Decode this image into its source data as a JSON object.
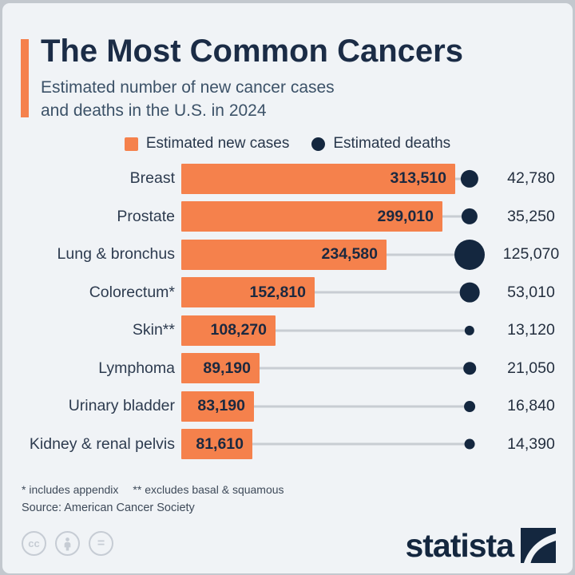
{
  "page": {
    "background": "#f0f3f6",
    "frame_color": "#c3c8ce"
  },
  "header": {
    "title": "The Most Common Cancers",
    "subtitle_line1": "Estimated number of new cancer cases",
    "subtitle_line2": "and deaths in the U.S. in 2024",
    "accent_color": "#F5814C"
  },
  "legend": {
    "new_cases_label": "Estimated new cases",
    "deaths_label": "Estimated deaths"
  },
  "chart_data": {
    "type": "bar",
    "orientation": "horizontal",
    "title": "The Most Common Cancers",
    "subtitle": "Estimated number of new cancer cases and deaths in the U.S. in 2024",
    "categories": [
      "Breast",
      "Prostate",
      "Lung & bronchus",
      "Colorectum*",
      "Skin**",
      "Lymphoma",
      "Urinary bladder",
      "Kidney & renal pelvis"
    ],
    "series": [
      {
        "name": "Estimated new cases",
        "values": [
          313510,
          299010,
          234580,
          152810,
          108270,
          89190,
          83190,
          81610
        ]
      },
      {
        "name": "Estimated deaths",
        "values": [
          42780,
          35250,
          125070,
          53010,
          13120,
          21050,
          16840,
          14390
        ]
      }
    ],
    "rows": [
      {
        "category": "Breast",
        "new_cases": 313510,
        "new_cases_label": "313,510",
        "deaths": 42780,
        "deaths_label": "42,780"
      },
      {
        "category": "Prostate",
        "new_cases": 299010,
        "new_cases_label": "299,010",
        "deaths": 35250,
        "deaths_label": "35,250"
      },
      {
        "category": "Lung & bronchus",
        "new_cases": 234580,
        "new_cases_label": "234,580",
        "deaths": 125070,
        "deaths_label": "125,070"
      },
      {
        "category": "Colorectum*",
        "new_cases": 152810,
        "new_cases_label": "152,810",
        "deaths": 53010,
        "deaths_label": "53,010"
      },
      {
        "category": "Skin**",
        "new_cases": 108270,
        "new_cases_label": "108,270",
        "deaths": 13120,
        "deaths_label": "13,120"
      },
      {
        "category": "Lymphoma",
        "new_cases": 89190,
        "new_cases_label": "89,190",
        "deaths": 21050,
        "deaths_label": "21,050"
      },
      {
        "category": "Urinary bladder",
        "new_cases": 83190,
        "new_cases_label": "83,190",
        "deaths": 16840,
        "deaths_label": "16,840"
      },
      {
        "category": "Kidney & renal pelvis",
        "new_cases": 81610,
        "new_cases_label": "81,610",
        "deaths": 14390,
        "deaths_label": "14,390"
      }
    ],
    "colors": {
      "new_cases": "#F5814C",
      "deaths": "#14273F",
      "connector": "#c8cdd3"
    },
    "xlim": [
      0,
      313510
    ],
    "grid": false,
    "legend_position": "top",
    "notes": "death circles area-scaled to value; max circle 38px at 125070"
  },
  "footnotes": {
    "note1": "* includes appendix",
    "note2": "** excludes basal & squamous",
    "source": "Source: American Cancer Society"
  },
  "branding": {
    "logo_text": "statista",
    "license_icons": [
      "cc-icon",
      "attribution-person-icon",
      "equals-icon"
    ],
    "cc_glyph": "cc",
    "equals_glyph": "="
  }
}
